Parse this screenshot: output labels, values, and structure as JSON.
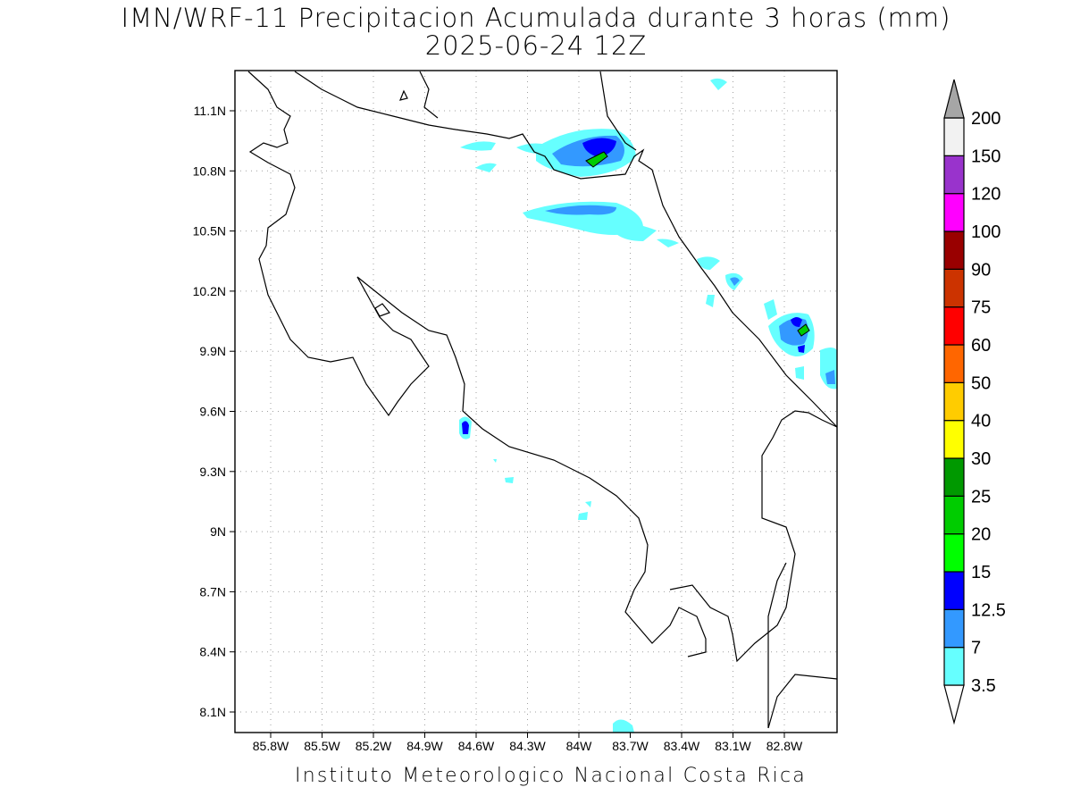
{
  "title": {
    "line1": "IMN/WRF-11 Precipitacion Acumulada durante 3 horas (mm)",
    "line2": "2025-06-24 12Z"
  },
  "footer": "Instituto Meteorologico Nacional Costa Rica",
  "axes": {
    "lon_ticks": [
      "85.8W",
      "85.5W",
      "85.2W",
      "84.9W",
      "84.6W",
      "84.3W",
      "84W",
      "83.7W",
      "83.4W",
      "83.1W",
      "82.8W"
    ],
    "lat_ticks": [
      "11.1N",
      "10.8N",
      "10.5N",
      "10.2N",
      "9.9N",
      "9.6N",
      "9.3N",
      "9N",
      "8.7N",
      "8.4N",
      "8.1N"
    ]
  },
  "colorbar": {
    "levels": [
      "3.5",
      "7",
      "12.5",
      "15",
      "20",
      "25",
      "30",
      "40",
      "50",
      "60",
      "75",
      "90",
      "100",
      "120",
      "150",
      "200"
    ],
    "colors": [
      "#66ffff",
      "#3399ff",
      "#0000ff",
      "#00ff00",
      "#00cc00",
      "#009900",
      "#ffff00",
      "#ffcc00",
      "#ff6600",
      "#ff0000",
      "#cc3300",
      "#990000",
      "#ff00ff",
      "#9933cc",
      "#f2f2f2",
      "#a6a6a6"
    ]
  }
}
